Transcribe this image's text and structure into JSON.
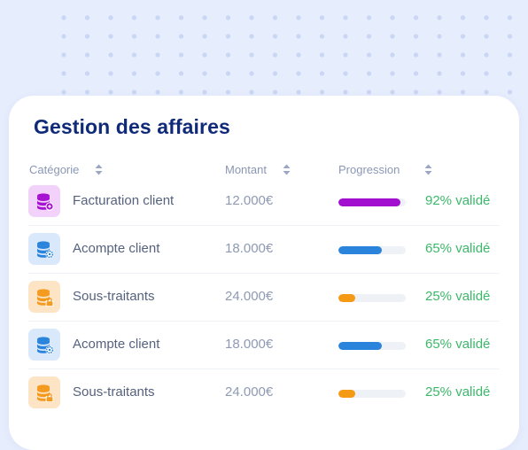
{
  "title": "Gestion des affaires",
  "columns": {
    "category": "Catégorie",
    "amount": "Montant",
    "progress": "Progression"
  },
  "rows": [
    {
      "category": "Facturation client",
      "amount": "12.000€",
      "progress": 0.92,
      "status": "92% validé",
      "icon": "database-add-icon",
      "icon_color": "#a711d1",
      "icon_bg": "#f2d2fb",
      "bar_color": "#a30fcf"
    },
    {
      "category": "Acompte client",
      "amount": "18.000€",
      "progress": 0.65,
      "status": "65% validé",
      "icon": "database-settings-icon",
      "icon_color": "#2a84dc",
      "icon_bg": "#d9e9fb",
      "bar_color": "#2a84dc"
    },
    {
      "category": "Sous-traitants",
      "amount": "24.000€",
      "progress": 0.25,
      "status": "25% validé",
      "icon": "database-lock-icon",
      "icon_color": "#f39a1f",
      "icon_bg": "#fde4c5",
      "bar_color": "#f59a14"
    },
    {
      "category": "Acompte client",
      "amount": "18.000€",
      "progress": 0.65,
      "status": "65% validé",
      "icon": "database-settings-icon",
      "icon_color": "#2a84dc",
      "icon_bg": "#d9e9fb",
      "bar_color": "#2a84dc"
    },
    {
      "category": "Sous-traitants",
      "amount": "24.000€",
      "progress": 0.25,
      "status": "25% validé",
      "icon": "database-lock-icon",
      "icon_color": "#f39a1f",
      "icon_bg": "#fde4c5",
      "bar_color": "#f59a14"
    }
  ],
  "colors": {
    "background": "#e6edfd",
    "title": "#0f2a78",
    "status_text": "#3cb86a",
    "dot": "#c9d6f4"
  }
}
